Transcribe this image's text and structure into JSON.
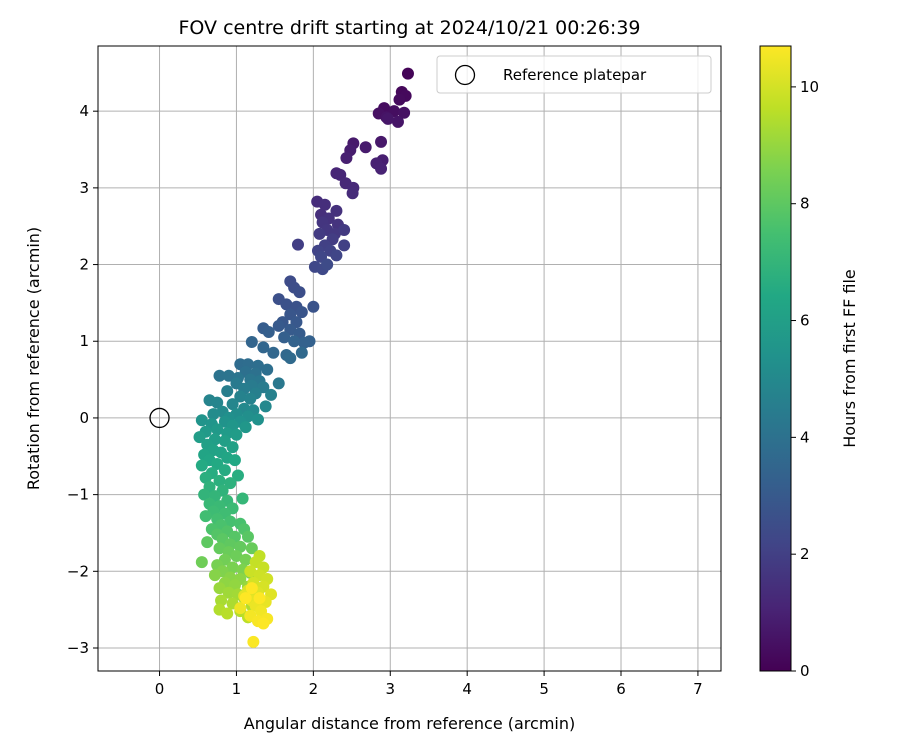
{
  "chart_data": {
    "type": "scatter",
    "title": "FOV centre drift starting at 2024/10/21 00:26:39",
    "xlabel": "Angular distance from reference (arcmin)",
    "ylabel": "Rotation from reference (arcmin)",
    "xlim": [
      -0.8,
      7.3
    ],
    "ylim": [
      -3.3,
      4.85
    ],
    "xticks": [
      0,
      1,
      2,
      3,
      4,
      5,
      6,
      7
    ],
    "yticks": [
      -3,
      -2,
      -1,
      0,
      1,
      2,
      3,
      4
    ],
    "grid": true,
    "legend": {
      "location": "upper-right",
      "entries": [
        "Reference platepar"
      ]
    },
    "reference_point": {
      "label": "Reference platepar",
      "x": 0.0,
      "y": 0.0
    },
    "colorbar": {
      "label": "Hours from first FF file",
      "colormap": "viridis",
      "range": [
        0,
        10.7
      ],
      "ticks": [
        0,
        2,
        4,
        6,
        8,
        10
      ]
    },
    "series": [
      {
        "color_by": "hours",
        "points": [
          [
            3.23,
            4.49,
            0.1
          ],
          [
            3.15,
            4.25,
            0.2
          ],
          [
            3.2,
            4.2,
            0.25
          ],
          [
            3.12,
            4.15,
            0.3
          ],
          [
            2.92,
            4.04,
            0.35
          ],
          [
            3.05,
            4.0,
            0.4
          ],
          [
            2.85,
            3.97,
            0.45
          ],
          [
            3.18,
            3.98,
            0.5
          ],
          [
            2.95,
            3.92,
            0.55
          ],
          [
            3.1,
            3.86,
            0.6
          ],
          [
            2.97,
            3.9,
            0.65
          ],
          [
            2.88,
            3.6,
            0.7
          ],
          [
            2.52,
            3.58,
            0.75
          ],
          [
            2.68,
            3.53,
            0.8
          ],
          [
            2.48,
            3.49,
            0.85
          ],
          [
            2.9,
            3.36,
            0.9
          ],
          [
            2.43,
            3.39,
            0.95
          ],
          [
            2.82,
            3.32,
            1.0
          ],
          [
            2.88,
            3.25,
            1.05
          ],
          [
            2.3,
            3.19,
            1.1
          ],
          [
            2.35,
            3.17,
            1.15
          ],
          [
            2.42,
            3.06,
            1.2
          ],
          [
            2.52,
            3.0,
            1.25
          ],
          [
            2.51,
            2.93,
            1.3
          ],
          [
            2.05,
            2.82,
            1.35
          ],
          [
            2.15,
            2.78,
            1.4
          ],
          [
            2.1,
            2.65,
            1.45
          ],
          [
            2.3,
            2.7,
            1.5
          ],
          [
            2.2,
            2.6,
            1.55
          ],
          [
            2.32,
            2.52,
            1.6
          ],
          [
            2.12,
            2.55,
            1.65
          ],
          [
            2.18,
            2.45,
            1.7
          ],
          [
            2.28,
            2.4,
            1.75
          ],
          [
            2.4,
            2.45,
            1.8
          ],
          [
            2.08,
            2.4,
            1.85
          ],
          [
            2.25,
            2.33,
            1.9
          ],
          [
            1.8,
            2.26,
            1.95
          ],
          [
            2.4,
            2.25,
            2.0
          ],
          [
            2.15,
            2.25,
            2.05
          ],
          [
            2.22,
            2.18,
            2.1
          ],
          [
            2.06,
            2.18,
            2.15
          ],
          [
            2.3,
            2.12,
            2.2
          ],
          [
            2.1,
            2.1,
            2.25
          ],
          [
            2.02,
            1.97,
            2.3
          ],
          [
            2.12,
            1.94,
            2.35
          ],
          [
            2.18,
            2.0,
            2.4
          ],
          [
            1.7,
            1.78,
            2.45
          ],
          [
            1.75,
            1.7,
            2.5
          ],
          [
            1.82,
            1.64,
            2.55
          ],
          [
            1.55,
            1.55,
            2.6
          ],
          [
            1.65,
            1.48,
            2.65
          ],
          [
            1.78,
            1.45,
            2.7
          ],
          [
            2.0,
            1.45,
            2.75
          ],
          [
            1.85,
            1.38,
            2.8
          ],
          [
            1.7,
            1.35,
            2.85
          ],
          [
            1.6,
            1.25,
            2.9
          ],
          [
            1.78,
            1.25,
            2.95
          ],
          [
            1.55,
            1.2,
            3.0
          ],
          [
            1.7,
            1.15,
            3.05
          ],
          [
            1.82,
            1.1,
            3.1
          ],
          [
            1.35,
            1.17,
            3.15
          ],
          [
            1.42,
            1.12,
            3.2
          ],
          [
            1.62,
            1.05,
            3.25
          ],
          [
            1.95,
            1.0,
            3.3
          ],
          [
            1.88,
            0.98,
            3.35
          ],
          [
            1.75,
            1.0,
            3.4
          ],
          [
            1.2,
            0.99,
            3.45
          ],
          [
            1.35,
            0.92,
            3.5
          ],
          [
            1.48,
            0.85,
            3.55
          ],
          [
            1.65,
            0.82,
            3.6
          ],
          [
            1.85,
            0.85,
            3.65
          ],
          [
            1.7,
            0.78,
            3.7
          ],
          [
            1.05,
            0.7,
            3.75
          ],
          [
            1.15,
            0.7,
            3.8
          ],
          [
            1.28,
            0.68,
            3.85
          ],
          [
            1.4,
            0.63,
            3.9
          ],
          [
            1.12,
            0.6,
            3.95
          ],
          [
            1.25,
            0.58,
            4.0
          ],
          [
            0.78,
            0.55,
            4.05
          ],
          [
            0.9,
            0.55,
            4.1
          ],
          [
            1.02,
            0.52,
            4.15
          ],
          [
            1.18,
            0.5,
            4.2
          ],
          [
            1.3,
            0.48,
            4.25
          ],
          [
            1.55,
            0.45,
            4.3
          ],
          [
            1.0,
            0.45,
            4.35
          ],
          [
            1.2,
            0.42,
            4.4
          ],
          [
            1.35,
            0.4,
            4.45
          ],
          [
            1.1,
            0.38,
            4.5
          ],
          [
            0.88,
            0.35,
            4.55
          ],
          [
            1.25,
            0.32,
            4.6
          ],
          [
            1.45,
            0.3,
            4.65
          ],
          [
            1.05,
            0.28,
            4.7
          ],
          [
            1.18,
            0.25,
            4.75
          ],
          [
            0.65,
            0.23,
            4.8
          ],
          [
            0.75,
            0.2,
            4.85
          ],
          [
            0.95,
            0.18,
            4.9
          ],
          [
            1.38,
            0.15,
            4.95
          ],
          [
            1.1,
            0.12,
            5.0
          ],
          [
            1.22,
            0.1,
            5.05
          ],
          [
            0.82,
            0.08,
            5.1
          ],
          [
            0.7,
            0.05,
            5.15
          ],
          [
            1.0,
            0.05,
            5.2
          ],
          [
            1.15,
            0.02,
            5.25
          ],
          [
            0.9,
            0.0,
            5.3
          ],
          [
            1.28,
            -0.02,
            5.35
          ],
          [
            1.05,
            -0.05,
            5.4
          ],
          [
            0.85,
            -0.05,
            5.45
          ],
          [
            0.55,
            -0.03,
            5.5
          ],
          [
            0.68,
            -0.08,
            5.55
          ],
          [
            0.95,
            -0.1,
            5.6
          ],
          [
            1.12,
            -0.12,
            5.65
          ],
          [
            0.75,
            -0.15,
            5.7
          ],
          [
            0.6,
            -0.18,
            5.75
          ],
          [
            0.88,
            -0.2,
            5.8
          ],
          [
            1.0,
            -0.22,
            5.85
          ],
          [
            0.52,
            -0.25,
            5.9
          ],
          [
            0.72,
            -0.28,
            5.95
          ],
          [
            0.85,
            -0.3,
            6.0
          ],
          [
            0.62,
            -0.35,
            6.05
          ],
          [
            0.95,
            -0.38,
            6.1
          ],
          [
            0.7,
            -0.42,
            6.15
          ],
          [
            0.8,
            -0.45,
            6.2
          ],
          [
            0.58,
            -0.48,
            6.25
          ],
          [
            0.88,
            -0.52,
            6.3
          ],
          [
            0.65,
            -0.55,
            6.35
          ],
          [
            0.98,
            -0.55,
            6.4
          ],
          [
            0.75,
            -0.6,
            6.45
          ],
          [
            0.55,
            -0.62,
            6.5
          ],
          [
            0.85,
            -0.68,
            6.55
          ],
          [
            0.68,
            -0.72,
            6.6
          ],
          [
            1.02,
            -0.75,
            6.65
          ],
          [
            0.6,
            -0.78,
            6.7
          ],
          [
            0.78,
            -0.82,
            6.75
          ],
          [
            0.92,
            -0.85,
            6.8
          ],
          [
            0.65,
            -0.9,
            6.85
          ],
          [
            0.82,
            -0.95,
            6.9
          ],
          [
            0.58,
            -1.0,
            6.95
          ],
          [
            0.72,
            -1.02,
            7.0
          ],
          [
            1.08,
            -1.05,
            7.05
          ],
          [
            0.88,
            -1.08,
            7.1
          ],
          [
            0.65,
            -1.12,
            7.15
          ],
          [
            0.78,
            -1.15,
            7.2
          ],
          [
            0.95,
            -1.18,
            7.25
          ],
          [
            0.7,
            -1.22,
            7.3
          ],
          [
            0.85,
            -1.25,
            7.35
          ],
          [
            0.6,
            -1.28,
            7.4
          ],
          [
            0.75,
            -1.32,
            7.45
          ],
          [
            0.92,
            -1.35,
            7.5
          ],
          [
            1.05,
            -1.38,
            7.55
          ],
          [
            0.8,
            -1.4,
            7.6
          ],
          [
            0.68,
            -1.45,
            7.65
          ],
          [
            1.1,
            -1.45,
            7.7
          ],
          [
            0.88,
            -1.48,
            7.75
          ],
          [
            0.75,
            -1.52,
            7.8
          ],
          [
            0.98,
            -1.55,
            7.85
          ],
          [
            1.15,
            -1.55,
            7.9
          ],
          [
            0.82,
            -1.58,
            7.95
          ],
          [
            0.62,
            -1.62,
            8.0
          ],
          [
            0.92,
            -1.65,
            8.05
          ],
          [
            1.05,
            -1.68,
            8.1
          ],
          [
            0.78,
            -1.7,
            8.15
          ],
          [
            1.2,
            -1.7,
            8.2
          ],
          [
            0.9,
            -1.75,
            8.25
          ],
          [
            1.0,
            -1.8,
            8.3
          ],
          [
            0.55,
            -1.88,
            8.35
          ],
          [
            0.85,
            -1.85,
            8.4
          ],
          [
            1.12,
            -1.85,
            8.45
          ],
          [
            0.75,
            -1.92,
            8.5
          ],
          [
            0.95,
            -1.95,
            8.55
          ],
          [
            1.08,
            -1.98,
            8.6
          ],
          [
            0.82,
            -2.0,
            8.65
          ],
          [
            1.18,
            -2.02,
            8.7
          ],
          [
            0.72,
            -2.05,
            8.75
          ],
          [
            0.92,
            -2.08,
            8.8
          ],
          [
            1.05,
            -2.1,
            8.85
          ],
          [
            0.85,
            -2.15,
            8.9
          ],
          [
            0.98,
            -2.18,
            8.95
          ],
          [
            1.15,
            -2.2,
            9.0
          ],
          [
            0.78,
            -2.22,
            9.05
          ],
          [
            1.25,
            -2.25,
            9.1
          ],
          [
            0.9,
            -2.28,
            9.15
          ],
          [
            1.02,
            -2.3,
            9.2
          ],
          [
            1.1,
            -2.35,
            9.25
          ],
          [
            0.8,
            -2.38,
            9.3
          ],
          [
            0.95,
            -2.42,
            9.35
          ],
          [
            1.2,
            -2.45,
            9.4
          ],
          [
            0.78,
            -2.5,
            9.45
          ],
          [
            1.05,
            -2.52,
            9.5
          ],
          [
            0.88,
            -2.55,
            9.55
          ],
          [
            1.15,
            -2.6,
            9.6
          ],
          [
            1.3,
            -1.8,
            9.7
          ],
          [
            1.25,
            -1.88,
            9.75
          ],
          [
            1.35,
            -1.95,
            9.8
          ],
          [
            1.18,
            -2.0,
            9.85
          ],
          [
            1.3,
            -2.05,
            9.9
          ],
          [
            1.4,
            -2.1,
            9.95
          ],
          [
            1.22,
            -2.15,
            10.0
          ],
          [
            1.35,
            -2.2,
            10.05
          ],
          [
            1.15,
            -2.25,
            10.1
          ],
          [
            1.28,
            -2.28,
            10.15
          ],
          [
            1.45,
            -2.3,
            10.2
          ],
          [
            1.1,
            -2.32,
            10.25
          ],
          [
            1.2,
            -2.38,
            10.3
          ],
          [
            1.38,
            -2.4,
            10.35
          ],
          [
            1.25,
            -2.45,
            10.4
          ],
          [
            1.05,
            -2.48,
            10.45
          ],
          [
            1.32,
            -2.52,
            10.5
          ],
          [
            1.18,
            -2.58,
            10.55
          ],
          [
            1.4,
            -2.62,
            10.6
          ],
          [
            1.28,
            -2.65,
            10.62
          ],
          [
            1.22,
            -2.92,
            10.65
          ],
          [
            1.35,
            -2.68,
            10.68
          ],
          [
            1.12,
            -2.35,
            10.7
          ],
          [
            1.3,
            -2.35,
            10.7
          ],
          [
            1.2,
            -2.22,
            10.7
          ]
        ]
      }
    ]
  }
}
